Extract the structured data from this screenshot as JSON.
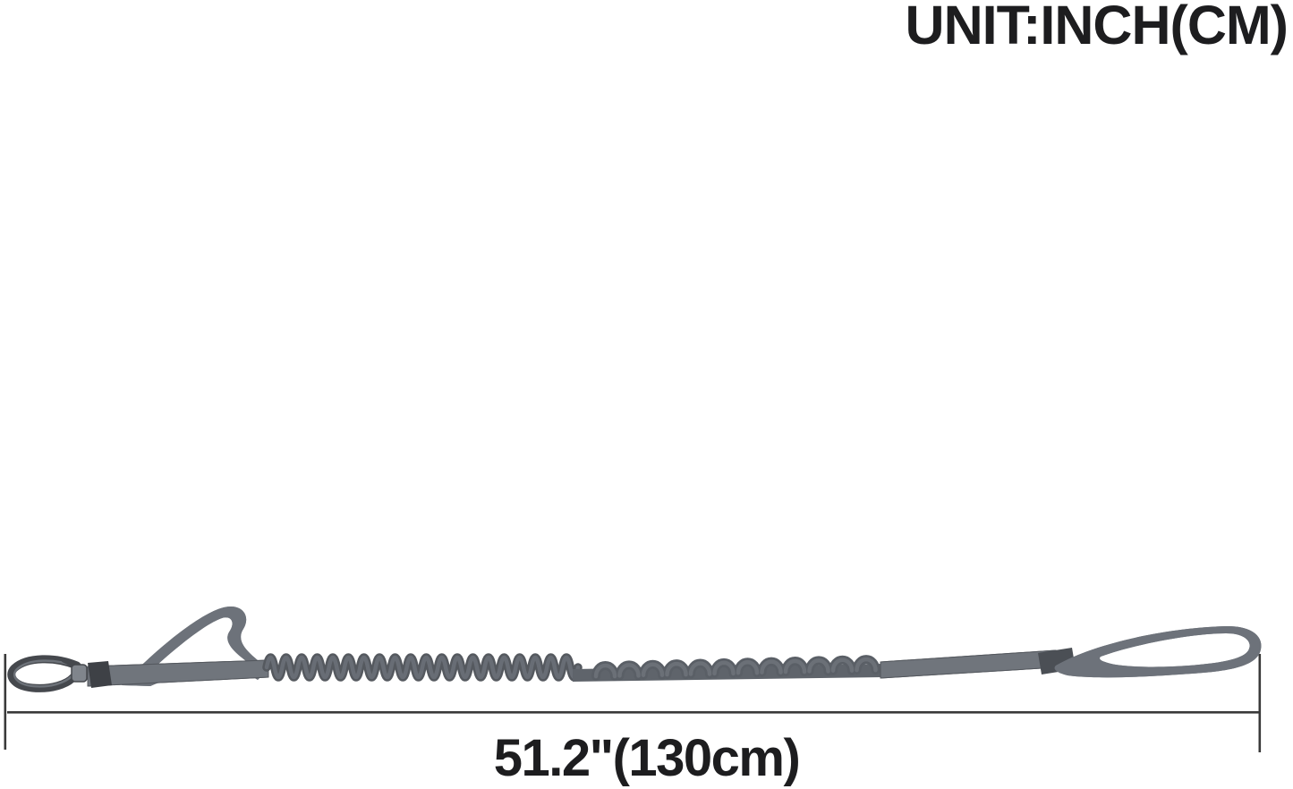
{
  "labels": {
    "unit": "UNIT:INCH(CM)",
    "length": "51.2\"(130cm)"
  },
  "illustration": {
    "subject": "gray bungee dog leash with metal snap hook, left handle loop, coiled shock-absorbing section and right handle loop"
  },
  "colors": {
    "background": "#ffffff",
    "text": "#1d1d1f",
    "dimension_line": "#3a3a3a",
    "webbing_gray": "#70757c",
    "webbing_edge": "#54585e",
    "coil_gray": "#55595f",
    "coil_highlight": "#6d727a",
    "keeper_gray": "#3e4146",
    "metal_gray": "#45484d",
    "metal_light": "#80858c"
  }
}
